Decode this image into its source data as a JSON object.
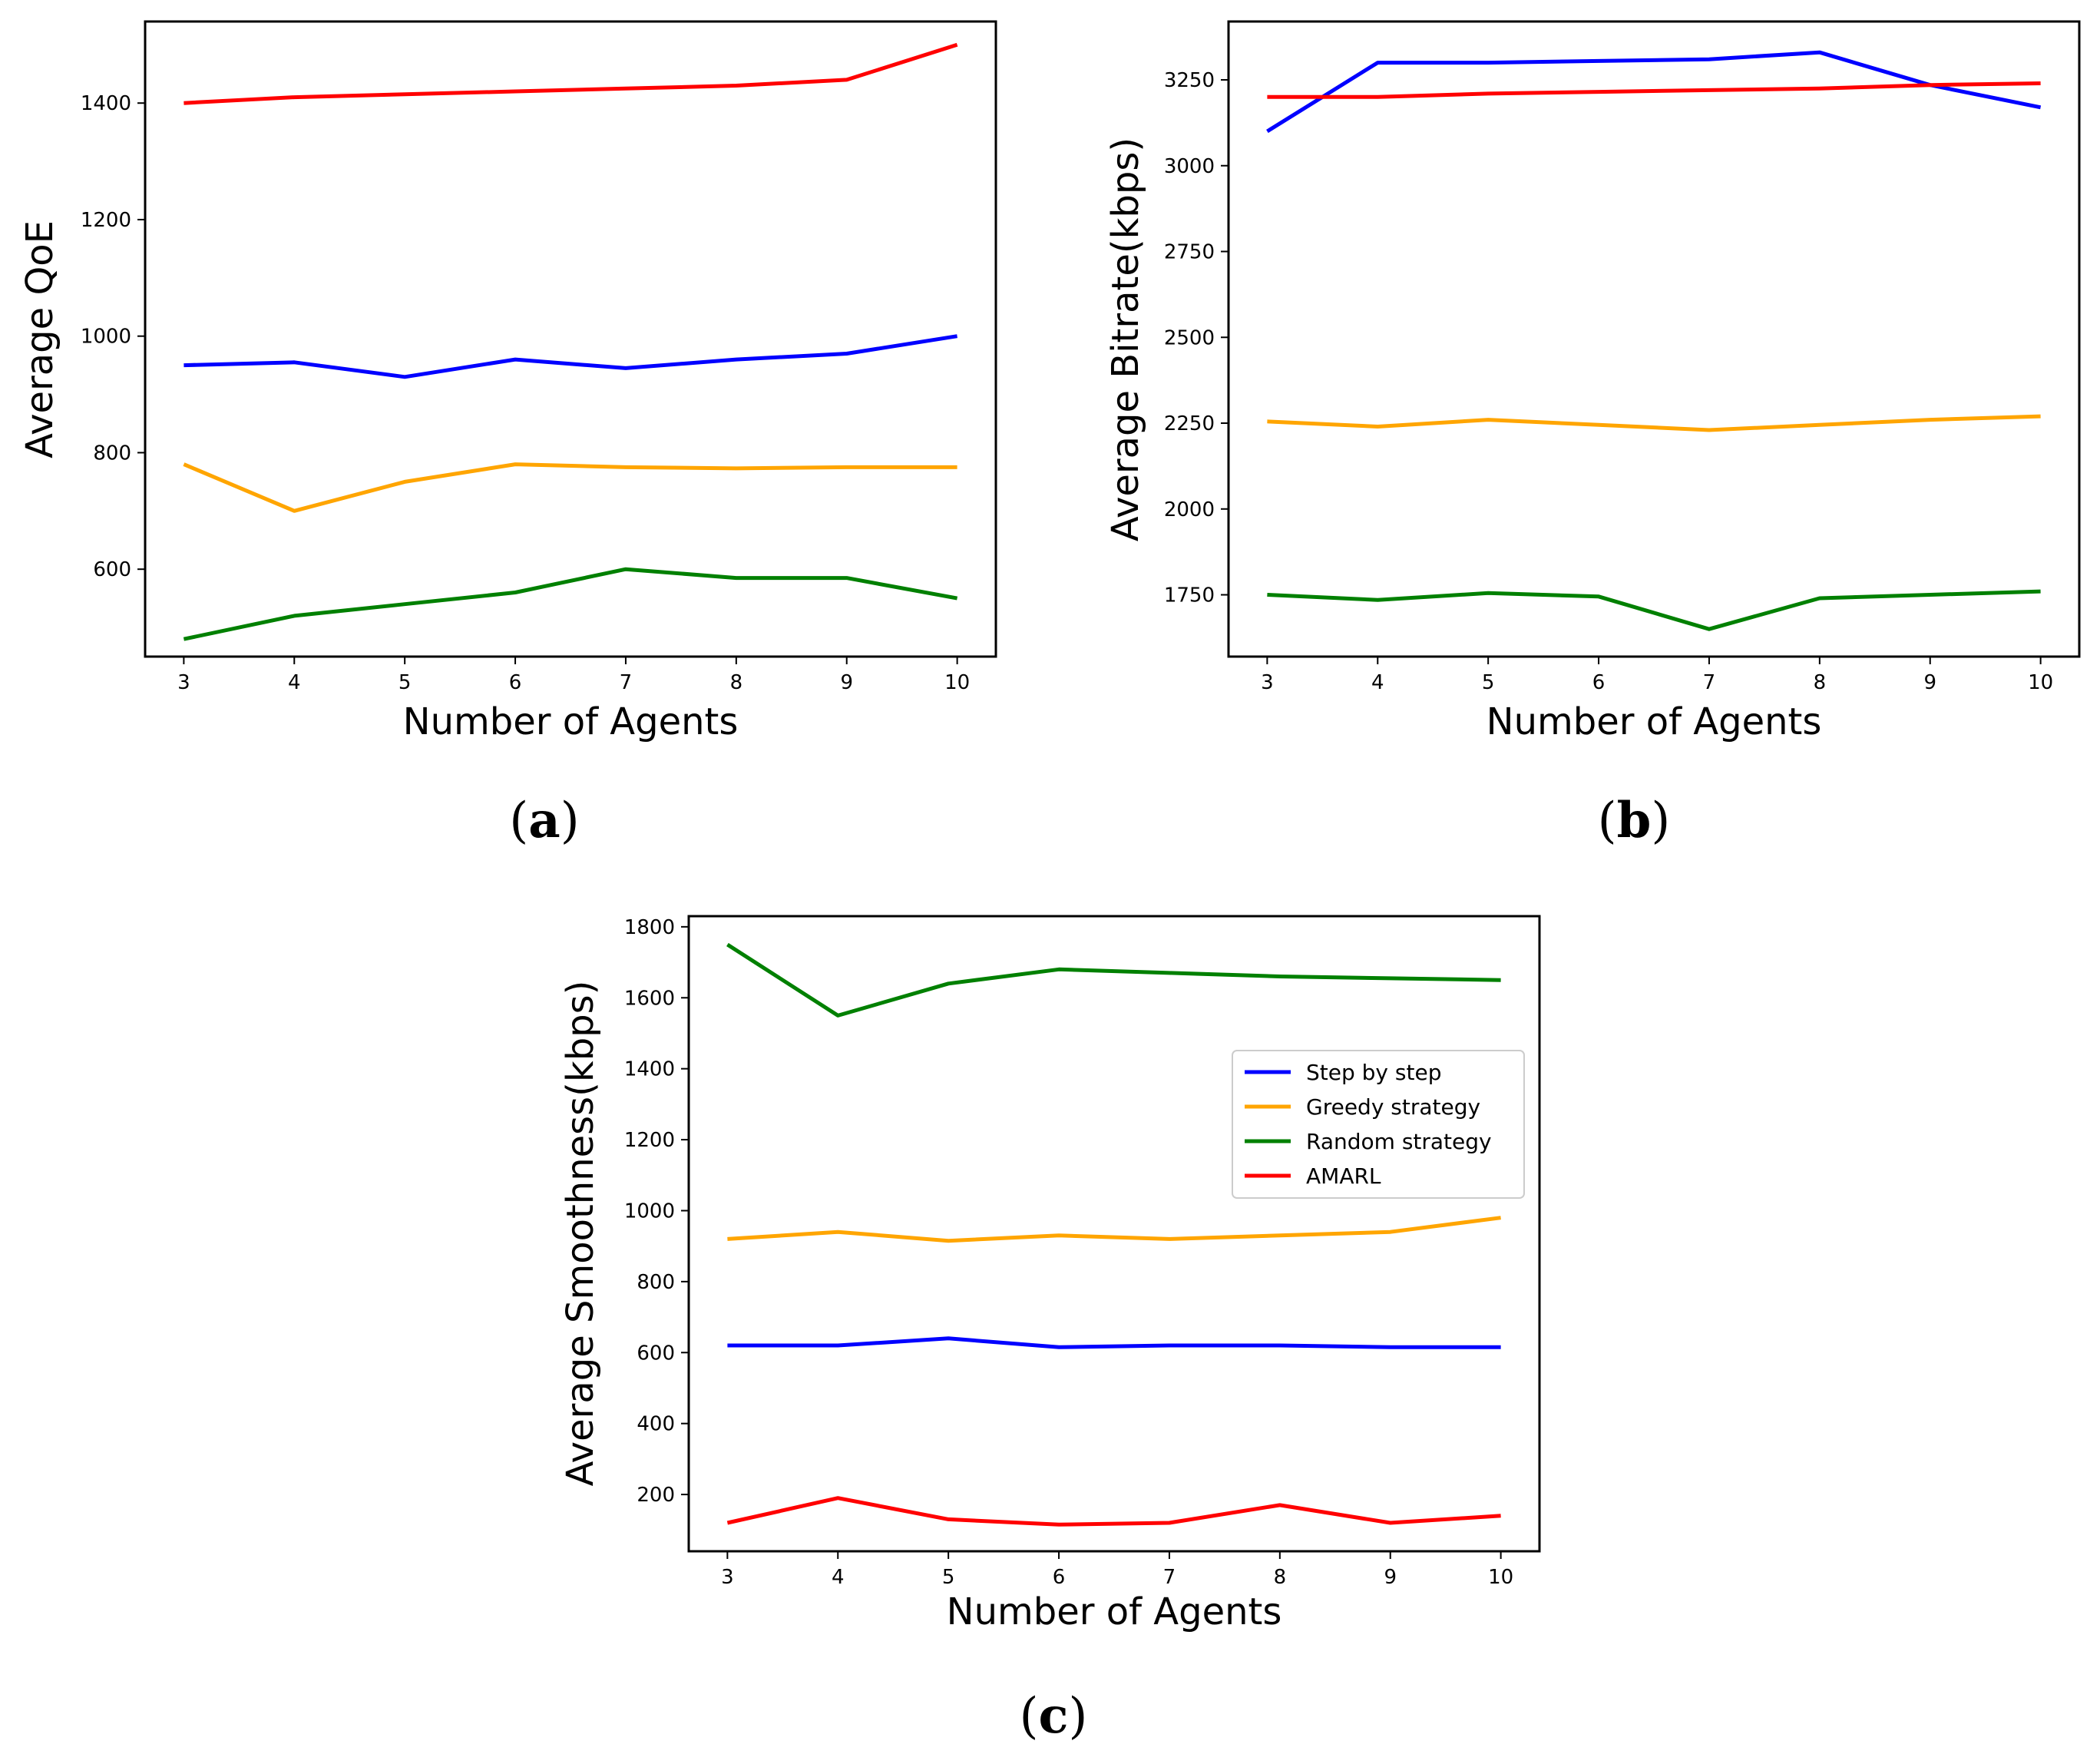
{
  "chart_data": [
    {
      "type": "line",
      "panel_label": "(a)",
      "xlabel": "Number of Agents",
      "ylabel": "Average QoE",
      "x": [
        3,
        4,
        5,
        6,
        7,
        8,
        9,
        10
      ],
      "xlim": [
        2.65,
        10.35
      ],
      "ylim": [
        450,
        1540
      ],
      "yticks": [
        600,
        800,
        1000,
        1200,
        1400
      ],
      "series": [
        {
          "name": "Step by step",
          "color": "#0000ff",
          "values": [
            950,
            955,
            930,
            960,
            945,
            960,
            970,
            1000
          ]
        },
        {
          "name": "Greedy strategy",
          "color": "#ffa500",
          "values": [
            780,
            700,
            750,
            780,
            775,
            773,
            775,
            775
          ]
        },
        {
          "name": "Random strategy",
          "color": "#008000",
          "values": [
            480,
            520,
            540,
            560,
            600,
            585,
            585,
            550
          ]
        },
        {
          "name": "AMARL",
          "color": "#ff0000",
          "values": [
            1400,
            1410,
            1415,
            1420,
            1425,
            1430,
            1440,
            1500
          ]
        }
      ]
    },
    {
      "type": "line",
      "panel_label": "(b)",
      "xlabel": "Number of Agents",
      "ylabel": "Average Bitrate(kbps)",
      "x": [
        3,
        4,
        5,
        6,
        7,
        8,
        9,
        10
      ],
      "xlim": [
        2.65,
        10.35
      ],
      "ylim": [
        1570,
        3420
      ],
      "yticks": [
        1750,
        2000,
        2250,
        2500,
        2750,
        3000,
        3250
      ],
      "series": [
        {
          "name": "Step by step",
          "color": "#0000ff",
          "values": [
            3100,
            3300,
            3300,
            3305,
            3310,
            3330,
            3235,
            3170
          ]
        },
        {
          "name": "Greedy strategy",
          "color": "#ffa500",
          "values": [
            2255,
            2240,
            2260,
            2245,
            2230,
            2245,
            2260,
            2270
          ]
        },
        {
          "name": "Random strategy",
          "color": "#008000",
          "values": [
            1750,
            1735,
            1755,
            1745,
            1650,
            1740,
            1750,
            1760
          ]
        },
        {
          "name": "AMARL",
          "color": "#ff0000",
          "values": [
            3200,
            3200,
            3210,
            3215,
            3220,
            3225,
            3235,
            3240
          ]
        }
      ]
    },
    {
      "type": "line",
      "panel_label": "(c)",
      "xlabel": "Number of Agents",
      "ylabel": "Average Smoothness(kbps)",
      "x": [
        3,
        4,
        5,
        6,
        7,
        8,
        9,
        10
      ],
      "xlim": [
        2.65,
        10.35
      ],
      "ylim": [
        40,
        1830
      ],
      "yticks": [
        200,
        400,
        600,
        800,
        1000,
        1200,
        1400,
        1600,
        1800
      ],
      "legend": {
        "position": "center-right"
      },
      "series": [
        {
          "name": "Step by step",
          "color": "#0000ff",
          "values": [
            620,
            620,
            640,
            615,
            620,
            620,
            615,
            615
          ]
        },
        {
          "name": "Greedy strategy",
          "color": "#ffa500",
          "values": [
            920,
            940,
            915,
            930,
            920,
            930,
            940,
            980
          ]
        },
        {
          "name": "Random strategy",
          "color": "#008000",
          "values": [
            1750,
            1550,
            1640,
            1680,
            1670,
            1660,
            1655,
            1650
          ]
        },
        {
          "name": "AMARL",
          "color": "#ff0000",
          "values": [
            120,
            190,
            130,
            115,
            120,
            170,
            120,
            140
          ]
        }
      ]
    }
  ]
}
